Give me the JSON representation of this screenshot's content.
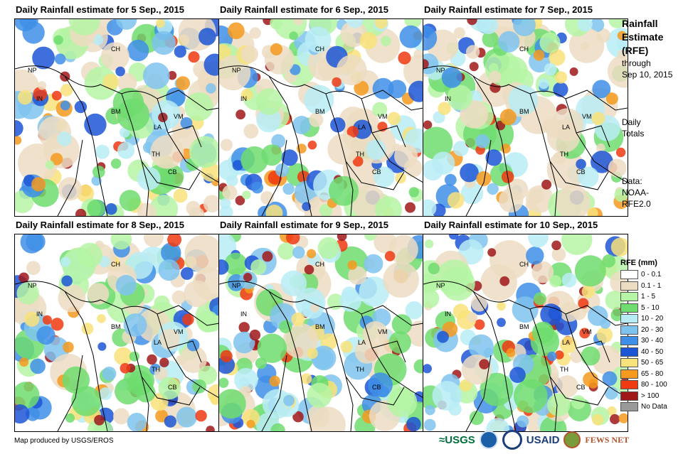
{
  "panels": [
    {
      "title": "Daily Rainfall estimate for 5 Sep., 2015",
      "seed": 5
    },
    {
      "title": "Daily Rainfall estimate for 6 Sep., 2015",
      "seed": 6
    },
    {
      "title": "Daily Rainfall estimate for 7 Sep., 2015",
      "seed": 7
    },
    {
      "title": "Daily Rainfall estimate for 8 Sep., 2015",
      "seed": 8
    },
    {
      "title": "Daily Rainfall estimate for 9 Sep., 2015",
      "seed": 9
    },
    {
      "title": "Daily Rainfall estimate for 10 Sep., 2015",
      "seed": 10
    }
  ],
  "country_labels": [
    "CH",
    "NP",
    "IN",
    "BM",
    "LA",
    "VM",
    "TH",
    "CB"
  ],
  "side": {
    "title_line1": "Rainfall",
    "title_line2": "Estimate",
    "title_line3": "(RFE)",
    "through": "through",
    "through_date": "Sep 10, 2015",
    "daily": "Daily",
    "totals": "Totals",
    "data_label": "Data:",
    "data_src1": "NOAA-",
    "data_src2": "RFE2.0"
  },
  "legend": {
    "title": "RFE (mm)",
    "items": [
      {
        "label": "0 - 0.1",
        "color": "#ffffff"
      },
      {
        "label": "0.1 - 1",
        "color": "#ecdcc2"
      },
      {
        "label": "1 - 5",
        "color": "#b5f5a5"
      },
      {
        "label": "5 - 10",
        "color": "#6edc6e"
      },
      {
        "label": "10 - 20",
        "color": "#b8ecf5"
      },
      {
        "label": "20 - 30",
        "color": "#7fc3ef"
      },
      {
        "label": "30 - 40",
        "color": "#3f8fe8"
      },
      {
        "label": "40 - 50",
        "color": "#1c56d6"
      },
      {
        "label": "50 - 65",
        "color": "#f8e27a"
      },
      {
        "label": "65 - 80",
        "color": "#f59a1e"
      },
      {
        "label": "80 - 100",
        "color": "#ef3a12"
      },
      {
        "label": "> 100",
        "color": "#a0171a"
      },
      {
        "label": "No Data",
        "color": "#999999"
      }
    ]
  },
  "credit": "Map produced by USGS/EROS",
  "logos": {
    "usgs": "≈USGS",
    "usaid": "USAID",
    "fewsnet": "FEWS NET"
  }
}
